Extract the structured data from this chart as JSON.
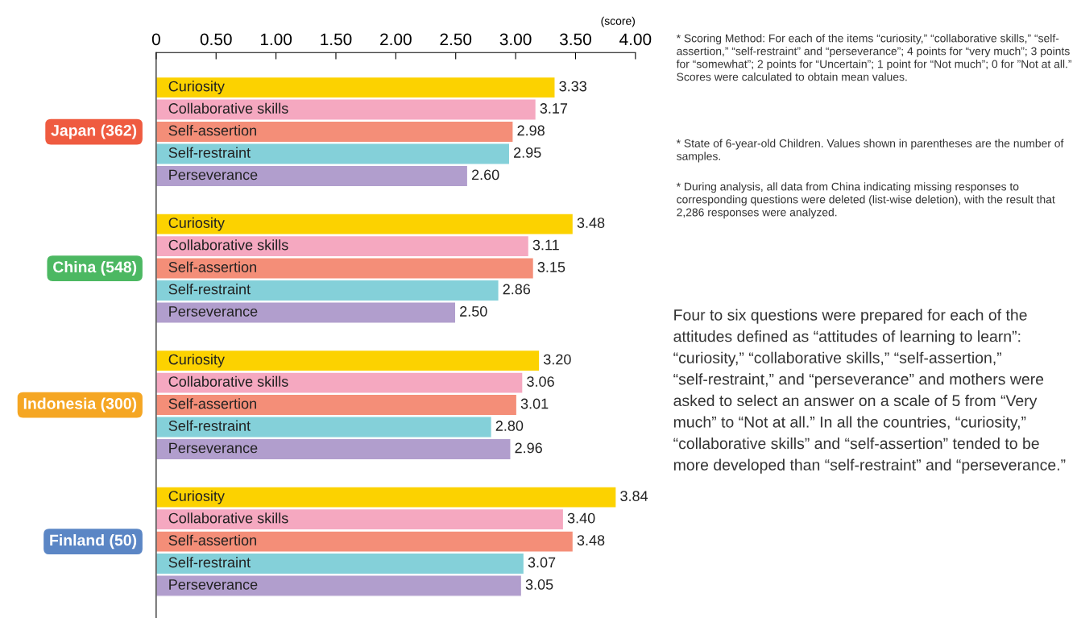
{
  "chart_data": {
    "type": "bar",
    "orientation": "horizontal",
    "xlabel": "(score)",
    "categories": [
      "Japan (362)",
      "China (548)",
      "Indonesia (300)",
      "Finland (50)"
    ],
    "series": [
      {
        "name": "Curiosity",
        "color": "#fcd200",
        "values": [
          3.33,
          3.48,
          3.2,
          3.84
        ],
        "value_labels": [
          "3.33",
          "3.48",
          "3.20",
          "3.84"
        ]
      },
      {
        "name": "Collaborative skills",
        "color": "#f5a8c0",
        "values": [
          3.17,
          3.11,
          3.06,
          3.4
        ],
        "value_labels": [
          "3.17",
          "3.11",
          "3.06",
          "3.40"
        ]
      },
      {
        "name": "Self-assertion",
        "color": "#f48e78",
        "values": [
          2.98,
          3.15,
          3.01,
          3.48
        ],
        "value_labels": [
          "2.98",
          "3.15",
          "3.01",
          "3.48"
        ]
      },
      {
        "name": "Self-restraint",
        "color": "#84d0d9",
        "values": [
          2.95,
          2.86,
          2.8,
          3.07
        ],
        "value_labels": [
          "2.95",
          "2.86",
          "2.80",
          "3.07"
        ]
      },
      {
        "name": "Perseverance",
        "color": "#b19ecd",
        "values": [
          2.6,
          2.5,
          2.96,
          3.05
        ],
        "value_labels": [
          "2.60",
          "2.50",
          "2.96",
          "3.05"
        ]
      }
    ],
    "xlim": [
      0,
      4
    ],
    "xticks": [
      0,
      {
        "value": 0.5,
        "label": "0.50"
      },
      {
        "value": 1,
        "label": "1.00"
      },
      {
        "value": 1.5,
        "label": "1.50"
      },
      {
        "value": 2,
        "label": "2.00"
      },
      {
        "value": 2.5,
        "label": "2.50"
      },
      {
        "value": 3,
        "label": "3.00"
      },
      {
        "value": 3.5,
        "label": "3.50"
      },
      {
        "value": 4,
        "label": "4.00"
      }
    ],
    "grid": false,
    "legend": false,
    "annotations": [
      "* Scoring Method: For each of the items “curiosity,” “collaborative skills,” “self- assertion,” “self-restraint” and “perseverance”; 4 points for “very much”; 3 points for “somewhat”; 2 points for “Uncertain”; 1 point for “Not much”; 0 for ”Not at all.” Scores were calculated to obtain mean values.",
      "* State of 6-year-old Children. Values shown in parentheses are the number of samples.",
      "* During analysis, all data from China indicating missing responses to corresponding questions were deleted (list-wise deletion), with the result that 2,286 responses were analyzed.",
      "Four to six questions were prepared for each of the attitudes defined as “attitudes of learning to learn”: “curiosity,” “collaborative skills,” “self-assertion,” “self-restraint,” and “perseverance” and mothers were asked to select an answer on a scale of 5 from “Very much” to “Not at all.” In all the countries, “curiosity,” “collaborative skills” and “self-assertion” tended to be more developed than “self-restraint” and “perseverance.”"
    ]
  }
}
